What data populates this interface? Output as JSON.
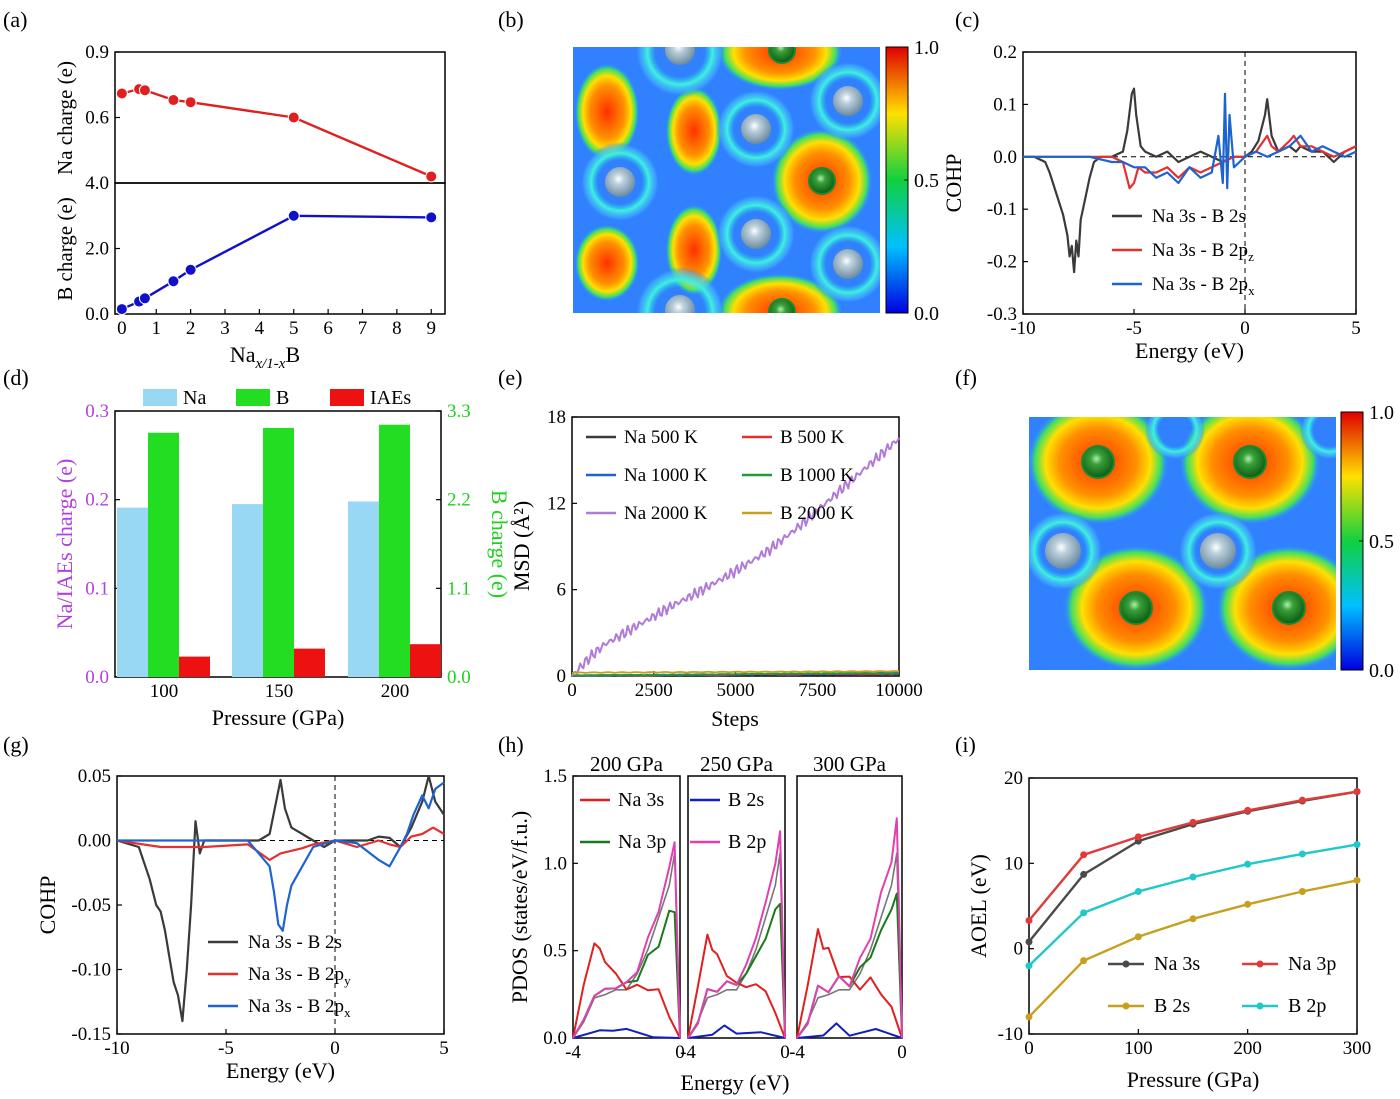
{
  "panels": {
    "a": {
      "label": "(a)",
      "top": {
        "ylabel": "Na charge (e)",
        "ylim": [
          0.3,
          0.9
        ],
        "yticks": [
          "0.9",
          "0.6"
        ]
      },
      "bottom": {
        "ylabel": "B charge (e)",
        "ylim": [
          0,
          4.0
        ],
        "yticks": [
          "4.0",
          "2.0",
          "0.0"
        ]
      },
      "xlabel": "Na",
      "xlabel_sub": "x/1-x",
      "xlabel_tail": "B",
      "xticks": [
        "0",
        "1",
        "2",
        "3",
        "4",
        "5",
        "6",
        "7",
        "8",
        "9"
      ]
    },
    "b": {
      "label": "(b)",
      "colorbar_ticks": [
        "1.0",
        "0.5",
        "0.0"
      ]
    },
    "c": {
      "label": "(c)",
      "xlabel": "Energy (eV)",
      "ylabel": "COHP",
      "xticks": [
        "-10",
        "-5",
        "0",
        "5"
      ],
      "yticks": [
        "0.2",
        "0.1",
        "0.0",
        "-0.1",
        "-0.2",
        "-0.3"
      ],
      "legend": [
        {
          "a": "Na 3s",
          "b": "B 2s",
          "sub": "",
          "color": "#3a3a3a"
        },
        {
          "a": "Na 3s",
          "b": "B 2p",
          "sub": "z",
          "color": "#e53030"
        },
        {
          "a": "Na 3s",
          "b": "B 2p",
          "sub": "x",
          "color": "#1e64d0"
        }
      ]
    },
    "d": {
      "label": "(d)",
      "xlabel": "Pressure (GPa)",
      "ylabel_left": "Na/IAEs charge (e)",
      "ylabel_right": "B charge (e)",
      "yticks_left": [
        "0.3",
        "0.2",
        "0.1",
        "0.0"
      ],
      "yticks_right": [
        "3.3",
        "2.2",
        "1.1",
        "0.0"
      ],
      "legend": [
        "Na",
        "B",
        "IAEs"
      ]
    },
    "e": {
      "label": "(e)",
      "xlabel": "Steps",
      "ylabel": "MSD (Å²)",
      "xticks": [
        "0",
        "2500",
        "5000",
        "7500",
        "10000"
      ],
      "yticks": [
        "18",
        "12",
        "6",
        "0"
      ],
      "legend": [
        {
          "text": "Na 500   K",
          "color": "#3a3a3a"
        },
        {
          "text": "B 500   K",
          "color": "#e53030"
        },
        {
          "text": "Na 1000 K",
          "color": "#1e64d0"
        },
        {
          "text": "B 1000 K",
          "color": "#1f9a3a"
        },
        {
          "text": "Na 2000 K",
          "color": "#b07ad8"
        },
        {
          "text": "B 2000 K",
          "color": "#c8a020"
        }
      ]
    },
    "f": {
      "label": "(f)",
      "colorbar_ticks": [
        "1.0",
        "0.5",
        "0.0"
      ]
    },
    "g": {
      "label": "(g)",
      "xlabel": "Energy (eV)",
      "ylabel": "COHP",
      "xticks": [
        "-10",
        "-5",
        "0",
        "5"
      ],
      "yticks": [
        "0.05",
        "0.00",
        "-0.05",
        "-0.10",
        "-0.15"
      ],
      "legend": [
        {
          "a": "Na 3s",
          "b": "B 2s",
          "sub": "",
          "color": "#3a3a3a"
        },
        {
          "a": "Na 3s",
          "b": "B 2p",
          "sub": "y",
          "color": "#e53030"
        },
        {
          "a": "Na 3s",
          "b": "B 2p",
          "sub": "x",
          "color": "#1e64d0"
        }
      ]
    },
    "h": {
      "label": "(h)",
      "xlabel": "Energy (eV)",
      "ylabel": "PDOS (states/eV/f.u.)",
      "titles": [
        "200 GPa",
        "250 GPa",
        "300 GPa"
      ],
      "xticks": [
        "-4",
        "0"
      ],
      "yticks": [
        "1.5",
        "1.0",
        "0.5",
        "0.0"
      ],
      "legend": [
        {
          "text": "Na  3s",
          "color": "#e02020"
        },
        {
          "text": "Na 3p",
          "color": "#1a7a1a"
        },
        {
          "text": "B 2s",
          "color": "#1020c0"
        },
        {
          "text": "B 2p",
          "color": "#e040b0"
        }
      ]
    },
    "i": {
      "label": "(i)",
      "xlabel": "Pressure (GPa)",
      "ylabel": "AOEL (eV)",
      "xticks": [
        "0",
        "100",
        "200",
        "300"
      ],
      "yticks": [
        "20",
        "10",
        "0",
        "-10"
      ],
      "legend": [
        {
          "text": "Na 3s",
          "color": "#4a4a4a"
        },
        {
          "text": "Na 3p",
          "color": "#e03a3a"
        },
        {
          "text": "B   2s",
          "color": "#c8a020"
        },
        {
          "text": "B   2p",
          "color": "#20c8c8"
        }
      ]
    }
  },
  "chart_data": [
    {
      "panel": "a",
      "type": "line",
      "xlabel": "Na_{x/1-x}B",
      "series": [
        {
          "name": "Na charge (e)",
          "color": "#e02020",
          "x": [
            0,
            0.5,
            0.67,
            1.5,
            2,
            5,
            9
          ],
          "y": [
            0.71,
            0.73,
            0.725,
            0.68,
            0.67,
            0.6,
            0.33
          ]
        },
        {
          "name": "B charge (e)",
          "color": "#1010c8",
          "x": [
            0,
            0.5,
            0.67,
            1.5,
            2,
            5,
            9
          ],
          "y": [
            0.15,
            0.38,
            0.48,
            1.0,
            1.35,
            3.0,
            2.95
          ]
        }
      ]
    },
    {
      "panel": "c",
      "type": "line",
      "xlim": [
        -10,
        5
      ],
      "ylim": [
        -0.3,
        0.2
      ],
      "series": [
        {
          "name": "Na 3s - B 2s",
          "x": [
            -10,
            -9.5,
            -9,
            -8.8,
            -8.5,
            -8.2,
            -8,
            -7.9,
            -7.8,
            -7.7,
            -7.6,
            -7.5,
            -7.4,
            -7.2,
            -7,
            -6.8,
            -6.5,
            -6,
            -5.5,
            -5.3,
            -5.1,
            -5,
            -4.9,
            -4.7,
            -4.5,
            -4,
            -3.5,
            -3,
            -2.5,
            -2,
            -1.5,
            -1,
            -0.5,
            0,
            0.3,
            0.6,
            0.9,
            1,
            1.2,
            1.5,
            2,
            2.3,
            2.5,
            3,
            3.5,
            4,
            4.5,
            5
          ],
          "y": [
            0,
            0,
            -0.01,
            -0.03,
            -0.07,
            -0.11,
            -0.15,
            -0.19,
            -0.17,
            -0.22,
            -0.16,
            -0.19,
            -0.12,
            -0.08,
            -0.04,
            -0.01,
            0,
            0,
            0.01,
            0.05,
            0.12,
            0.13,
            0.08,
            0.02,
            0.01,
            0,
            0.01,
            -0.01,
            0,
            0.01,
            0,
            -0.01,
            0,
            0,
            0.01,
            0.03,
            0.08,
            0.11,
            0.04,
            0.01,
            0.02,
            0.01,
            0.02,
            0.01,
            0.01,
            -0.01,
            0.01,
            0.02
          ]
        },
        {
          "name": "Na 3s - B 2pz",
          "x": [
            -10,
            -7,
            -6,
            -5.5,
            -5.2,
            -5,
            -4.8,
            -4.5,
            -4,
            -3.5,
            -3,
            -2.5,
            -2,
            -1.5,
            -1,
            -0.5,
            0,
            0.5,
            1,
            1.2,
            1.5,
            2,
            2.2,
            2.5,
            3,
            3.5,
            4,
            4.5,
            5
          ],
          "y": [
            0,
            0,
            0,
            -0.01,
            -0.06,
            -0.05,
            -0.02,
            -0.03,
            -0.03,
            -0.02,
            -0.04,
            -0.02,
            -0.03,
            -0.02,
            -0.01,
            0,
            0,
            0.01,
            0.04,
            0.02,
            0.01,
            0.03,
            0.04,
            0.02,
            0.02,
            0.01,
            0,
            0.01,
            0.02
          ]
        },
        {
          "name": "Na 3s - B 2px",
          "x": [
            -10,
            -7,
            -6,
            -5.5,
            -5,
            -4.5,
            -4,
            -3.5,
            -3,
            -2.5,
            -2,
            -1.5,
            -1.2,
            -1,
            -0.9,
            -0.8,
            -0.7,
            -0.5,
            0,
            0.5,
            1,
            1.5,
            2,
            2.5,
            3,
            3.5,
            4,
            4.5,
            5
          ],
          "y": [
            0,
            0,
            -0.01,
            -0.01,
            -0.02,
            -0.02,
            -0.04,
            -0.03,
            -0.05,
            -0.02,
            -0.04,
            -0.03,
            0.04,
            -0.05,
            0.12,
            -0.06,
            0.08,
            -0.02,
            0,
            0.01,
            0,
            0.01,
            0.02,
            0.04,
            0.01,
            0.02,
            0.01,
            0,
            0.01
          ]
        }
      ]
    },
    {
      "panel": "d",
      "type": "bar",
      "categories": [
        "100",
        "150",
        "200"
      ],
      "series": [
        {
          "name": "Na",
          "axis": "left",
          "values": [
            0.191,
            0.195,
            0.198
          ]
        },
        {
          "name": "B",
          "axis": "right",
          "values": [
            3.03,
            3.09,
            3.13
          ]
        },
        {
          "name": "IAEs",
          "axis": "left",
          "values": [
            0.023,
            0.032,
            0.037
          ]
        }
      ],
      "ylim_left": [
        0,
        0.3
      ],
      "ylim_right": [
        0,
        3.3
      ]
    },
    {
      "panel": "e",
      "type": "line",
      "xlim": [
        0,
        10000
      ],
      "ylim": [
        0,
        18
      ],
      "series": [
        {
          "name": "Na 500 K",
          "x": [
            0,
            10000
          ],
          "y": [
            0,
            0.1
          ]
        },
        {
          "name": "B 500 K",
          "x": [
            0,
            10000
          ],
          "y": [
            0,
            0.1
          ]
        },
        {
          "name": "Na 1000 K",
          "x": [
            0,
            10000
          ],
          "y": [
            0,
            0.15
          ]
        },
        {
          "name": "B 1000 K",
          "x": [
            0,
            10000
          ],
          "y": [
            0,
            0.2
          ]
        },
        {
          "name": "Na 2000 K",
          "x": [
            0,
            500,
            1000,
            2000,
            3000,
            4000,
            5000,
            6000,
            7000,
            8000,
            9000,
            10000
          ],
          "y": [
            0,
            1.2,
            2.2,
            3.5,
            4.8,
            6.0,
            7.3,
            8.7,
            10.5,
            12.5,
            14.5,
            16.5
          ]
        },
        {
          "name": "B 2000 K",
          "x": [
            0,
            10000
          ],
          "y": [
            0.2,
            0.3
          ]
        }
      ]
    },
    {
      "panel": "g",
      "type": "line",
      "xlim": [
        -10,
        5
      ],
      "ylim": [
        -0.15,
        0.05
      ],
      "series": [
        {
          "name": "Na 3s - B 2s",
          "x": [
            -10,
            -9,
            -8.5,
            -8.2,
            -8,
            -7.8,
            -7.6,
            -7.4,
            -7.2,
            -7,
            -6.8,
            -6.6,
            -6.4,
            -6.2,
            -6,
            -5,
            -4,
            -3.5,
            -3,
            -2.7,
            -2.5,
            -2.3,
            -2,
            -1.5,
            -1,
            -0.5,
            0,
            0.5,
            1,
            1.5,
            2,
            2.5,
            3,
            3.5,
            4,
            4.3,
            4.6,
            5
          ],
          "y": [
            0,
            -0.005,
            -0.03,
            -0.05,
            -0.055,
            -0.07,
            -0.09,
            -0.11,
            -0.12,
            -0.14,
            -0.1,
            -0.05,
            0.015,
            -0.01,
            0,
            0,
            0,
            0,
            0.005,
            0.03,
            0.047,
            0.025,
            0.01,
            0.005,
            0,
            -0.005,
            0,
            0,
            0,
            0,
            0.003,
            0.002,
            -0.005,
            0.01,
            0.03,
            0.05,
            0.03,
            0.02
          ]
        },
        {
          "name": "Na 3s - B 2py",
          "x": [
            -10,
            -8,
            -6,
            -4,
            -3,
            -2.5,
            -2,
            -1.5,
            -1,
            0,
            1,
            2,
            2.5,
            3,
            3.5,
            4,
            4.5,
            5
          ],
          "y": [
            0,
            -0.005,
            -0.005,
            -0.003,
            -0.015,
            -0.01,
            -0.008,
            -0.006,
            -0.003,
            0,
            -0.005,
            0,
            -0.003,
            -0.005,
            0.003,
            0.005,
            0.01,
            0.005
          ]
        },
        {
          "name": "Na 3s - B 2px",
          "x": [
            -10,
            -8,
            -6,
            -4,
            -3,
            -2.8,
            -2.6,
            -2.4,
            -2.2,
            -2,
            -1.5,
            -1,
            0,
            1,
            2,
            2.5,
            3,
            3.3,
            3.6,
            4,
            4.3,
            4.6,
            5
          ],
          "y": [
            0,
            0,
            0,
            0,
            -0.02,
            -0.04,
            -0.065,
            -0.07,
            -0.05,
            -0.035,
            -0.02,
            -0.005,
            0,
            -0.002,
            -0.015,
            -0.02,
            -0.005,
            0.005,
            0.02,
            0.035,
            0.025,
            0.04,
            0.045
          ]
        }
      ]
    },
    {
      "panel": "h",
      "type": "line",
      "xlim": [
        -4,
        0
      ],
      "ylim": [
        0,
        1.5
      ],
      "subplots": [
        "200 GPa",
        "250 GPa",
        "300 GPa"
      ],
      "series": [
        {
          "name": "Na 3s",
          "x": [
            -4,
            -3.6,
            -3.2,
            -3,
            -2.8,
            -2.4,
            -2,
            -1.6,
            -1.2,
            -0.8,
            -0.4,
            0
          ],
          "y": [
            0,
            0.3,
            0.55,
            0.5,
            0.45,
            0.35,
            0.3,
            0.28,
            0.3,
            0.25,
            0.15,
            0.0
          ]
        },
        {
          "name": "Na 3p",
          "x": [
            -4,
            -3.6,
            -3.2,
            -2.8,
            -2.4,
            -2,
            -1.6,
            -1.2,
            -0.8,
            -0.4,
            -0.2,
            0
          ],
          "y": [
            0,
            0.1,
            0.25,
            0.27,
            0.3,
            0.3,
            0.35,
            0.45,
            0.55,
            0.7,
            0.75,
            0.0
          ]
        },
        {
          "name": "B 2s",
          "x": [
            -4,
            -3,
            -2.5,
            -2,
            -1,
            0
          ],
          "y": [
            0,
            0.04,
            0.05,
            0.04,
            0.02,
            0.0
          ]
        },
        {
          "name": "B 2p",
          "x": [
            -4,
            -3.6,
            -3.2,
            -2.8,
            -2.4,
            -2,
            -1.6,
            -1.2,
            -0.8,
            -0.4,
            -0.2,
            0
          ],
          "y": [
            0,
            0.1,
            0.25,
            0.27,
            0.3,
            0.3,
            0.4,
            0.55,
            0.75,
            0.95,
            1.15,
            0.0
          ]
        }
      ]
    },
    {
      "panel": "i",
      "type": "line",
      "xlim": [
        0,
        300
      ],
      "ylim": [
        -10,
        20
      ],
      "series": [
        {
          "name": "Na 3s",
          "x": [
            0,
            50,
            100,
            150,
            200,
            250,
            300
          ],
          "y": [
            0.8,
            8.7,
            12.6,
            14.6,
            16.1,
            17.3,
            18.4
          ]
        },
        {
          "name": "Na 3p",
          "x": [
            0,
            50,
            100,
            150,
            200,
            250,
            300
          ],
          "y": [
            3.3,
            11.0,
            13.1,
            14.8,
            16.2,
            17.4,
            18.4
          ]
        },
        {
          "name": "B 2s",
          "x": [
            0,
            50,
            100,
            150,
            200,
            250,
            300
          ],
          "y": [
            -8.0,
            -1.4,
            1.4,
            3.5,
            5.2,
            6.7,
            8.0
          ]
        },
        {
          "name": "B 2p",
          "x": [
            0,
            50,
            100,
            150,
            200,
            250,
            300
          ],
          "y": [
            -2.0,
            4.2,
            6.7,
            8.4,
            9.9,
            11.1,
            12.2
          ]
        }
      ]
    }
  ]
}
